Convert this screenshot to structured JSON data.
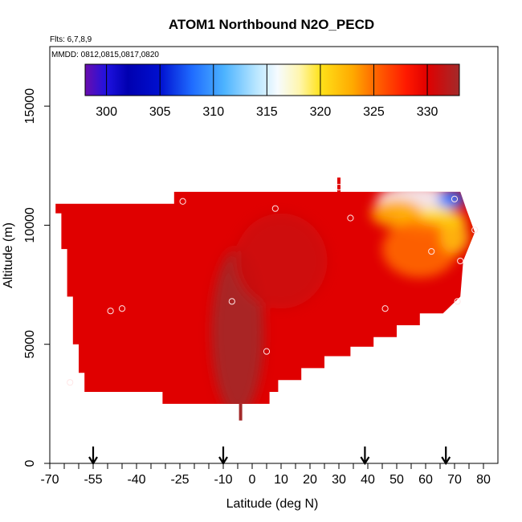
{
  "chart_data": {
    "type": "heatmap",
    "title": "ATOM1 Northbound N2O_PECD",
    "subtitle_flights": "Flts: 6,7,8,9",
    "subtitle_dates": "MMDD: 0812,0815,0817,0820",
    "xlabel": "Latitude (deg N)",
    "ylabel": "Altitude (m)",
    "xlim": [
      -70,
      85
    ],
    "ylim": [
      0,
      17500
    ],
    "x_tick_labels": [
      "-70",
      "-55",
      "-40",
      "-25",
      "-10",
      "0",
      "10",
      "20",
      "30",
      "40",
      "50",
      "60",
      "70",
      "80"
    ],
    "x_tick_values": [
      -70,
      -55,
      -40,
      -25,
      -10,
      0,
      10,
      20,
      30,
      40,
      50,
      60,
      70,
      80
    ],
    "x_minor_ticks": [
      -65,
      -60,
      -50,
      -45,
      -35,
      -30,
      -20,
      -15,
      -5,
      5,
      15,
      25,
      35,
      45,
      55,
      65,
      75
    ],
    "y_tick_labels": [
      "0",
      "5000",
      "10000",
      "15000"
    ],
    "y_tick_values": [
      0,
      5000,
      10000,
      15000
    ],
    "colorbar": {
      "min": 298,
      "max": 333,
      "tick_labels": [
        "300",
        "305",
        "310",
        "315",
        "320",
        "325",
        "330"
      ],
      "tick_values": [
        300,
        305,
        310,
        315,
        320,
        325,
        330
      ],
      "stops": [
        {
          "v": 298,
          "c": "#6a0dad"
        },
        {
          "v": 300,
          "c": "#1f12e0"
        },
        {
          "v": 302,
          "c": "#0000b0"
        },
        {
          "v": 305,
          "c": "#0010d0"
        },
        {
          "v": 308,
          "c": "#1f6cff"
        },
        {
          "v": 311,
          "c": "#4cb3ff"
        },
        {
          "v": 314,
          "c": "#b8e6ff"
        },
        {
          "v": 316,
          "c": "#f6fbff"
        },
        {
          "v": 318,
          "c": "#fff6b0"
        },
        {
          "v": 320,
          "c": "#ffe21a"
        },
        {
          "v": 323,
          "c": "#ffaa00"
        },
        {
          "v": 325,
          "c": "#ff6a00"
        },
        {
          "v": 328,
          "c": "#ff1a00"
        },
        {
          "v": 330,
          "c": "#e00000"
        },
        {
          "v": 333,
          "c": "#a32a2a"
        }
      ]
    },
    "curtain_outline": [
      [
        -68,
        10900
      ],
      [
        -27,
        10900
      ],
      [
        -27,
        11400
      ],
      [
        72,
        11400
      ],
      [
        74,
        10700
      ],
      [
        77,
        9700
      ],
      [
        73,
        8500
      ],
      [
        72,
        7000
      ],
      [
        66,
        6300
      ],
      [
        58,
        6300
      ],
      [
        58,
        5800
      ],
      [
        50,
        5800
      ],
      [
        50,
        5300
      ],
      [
        42,
        5300
      ],
      [
        42,
        4900
      ],
      [
        34,
        4900
      ],
      [
        34,
        4500
      ],
      [
        25,
        4500
      ],
      [
        25,
        4000
      ],
      [
        17,
        4000
      ],
      [
        17,
        3500
      ],
      [
        9,
        3500
      ],
      [
        9,
        3000
      ],
      [
        6,
        3000
      ],
      [
        6,
        2500
      ],
      [
        -31,
        2500
      ],
      [
        -31,
        3000
      ],
      [
        -58,
        3000
      ],
      [
        -58,
        3800
      ],
      [
        -60,
        3800
      ],
      [
        -60,
        5000
      ],
      [
        -62,
        5000
      ],
      [
        -62,
        7000
      ],
      [
        -64,
        7000
      ],
      [
        -64,
        9000
      ],
      [
        -66,
        9000
      ],
      [
        -66,
        10500
      ],
      [
        -68,
        10500
      ]
    ],
    "field_hotspots": [
      {
        "lat": 57,
        "alt": 11000,
        "v": 316,
        "rx": 14,
        "ry": 700
      },
      {
        "lat": 69,
        "alt": 11100,
        "v": 308,
        "rx": 5,
        "ry": 400
      },
      {
        "lat": 62,
        "alt": 10200,
        "v": 320,
        "rx": 12,
        "ry": 500
      },
      {
        "lat": 50,
        "alt": 10500,
        "v": 323,
        "rx": 9,
        "ry": 600
      },
      {
        "lat": 58,
        "alt": 9000,
        "v": 325,
        "rx": 13,
        "ry": 1200
      },
      {
        "lat": 70,
        "alt": 9500,
        "v": 322,
        "rx": 5,
        "ry": 700
      },
      {
        "lat": -5,
        "alt": 5500,
        "v": 333,
        "rx": 9,
        "ry": 3500
      },
      {
        "lat": 10,
        "alt": 8500,
        "v": 331,
        "rx": 16,
        "ry": 2000
      }
    ],
    "samples": [
      {
        "lat": -63,
        "alt": 3400
      },
      {
        "lat": -49,
        "alt": 6400
      },
      {
        "lat": -45,
        "alt": 6500
      },
      {
        "lat": -24,
        "alt": 11000
      },
      {
        "lat": -7,
        "alt": 6800
      },
      {
        "lat": 5,
        "alt": 4700
      },
      {
        "lat": 8,
        "alt": 10700
      },
      {
        "lat": 30,
        "alt": 11600
      },
      {
        "lat": 34,
        "alt": 10300
      },
      {
        "lat": 46,
        "alt": 6500
      },
      {
        "lat": 62,
        "alt": 8900
      },
      {
        "lat": 70,
        "alt": 11100
      },
      {
        "lat": 71,
        "alt": 6800
      },
      {
        "lat": 72,
        "alt": 8500
      },
      {
        "lat": 77,
        "alt": 9800
      }
    ],
    "vertical_profile_strip": {
      "lat": 30,
      "alt_min": 11300,
      "alt_max": 12000
    },
    "ground_spot": {
      "lat": -4,
      "alt_min": 1800,
      "alt_max": 2500
    },
    "arrows_lat": [
      -55,
      -10,
      39,
      67
    ]
  }
}
